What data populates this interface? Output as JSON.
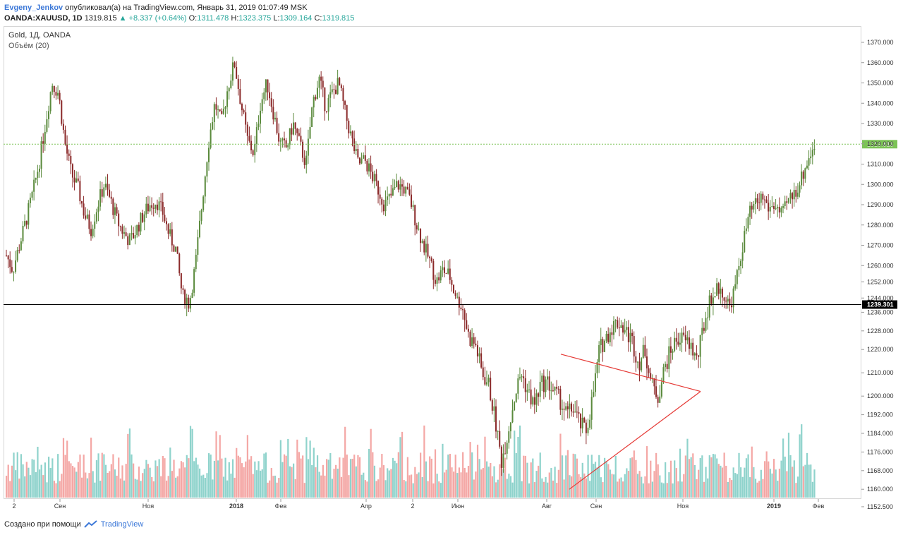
{
  "header": {
    "author": "Evgeny_Jenkov",
    "published": "опубликовал(а) на TradingView.com, Январь 31, 2019 01:07:49 MSK",
    "symbol": "OANDA:XAUUSD, 1D",
    "last": "1319.815",
    "change": "+8.337 (+0.64%)",
    "o_label": "O:",
    "o": "1311.478",
    "h_label": "H:",
    "h": "1323.375",
    "l_label": "L:",
    "l": "1309.164",
    "c_label": "C:",
    "c": "1319.815"
  },
  "legend": {
    "title": "Gold, 1Д, OANDA",
    "volume": "Объём (20)"
  },
  "footer": {
    "text": "Создано при помощи",
    "brand": "TradingView"
  },
  "colors": {
    "up": "#26a69a",
    "down": "#ef5350",
    "candle_up": "#5a8a3c",
    "candle_down": "#8b2a2a",
    "vol_up": "#8fd3cc",
    "vol_down": "#f4a7a5",
    "hline": "#000000",
    "last_line": "#7cc356",
    "triangle": "#e53935"
  },
  "chart_data": {
    "type": "candlestick",
    "y_ticks": [
      1370,
      1360,
      1350,
      1340,
      1330,
      1320,
      1310,
      1300,
      1290,
      1280,
      1270,
      1260,
      1252,
      1244,
      1236,
      1228,
      1220,
      1210,
      1200,
      1192,
      1184,
      1176,
      1168,
      1160,
      1152.5
    ],
    "y_tick_labels": [
      "1370.000",
      "1360.000",
      "1350.000",
      "1340.000",
      "1330.000",
      "1320.000",
      "1310.000",
      "1300.000",
      "1290.000",
      "1280.000",
      "1270.000",
      "1260.000",
      "1252.000",
      "1244.000",
      "1236.000",
      "1228.000",
      "1220.000",
      "1210.000",
      "1200.000",
      "1192.000",
      "1184.000",
      "1176.000",
      "1168.000",
      "1160.000",
      "1152.500"
    ],
    "x_labels": [
      "2",
      "Сен",
      "Ноя",
      "2018",
      "Фев",
      "Апр",
      "2",
      "Июн",
      "Авг",
      "Сен",
      "Ноя",
      "2019",
      "Фев"
    ],
    "bold_x_labels": [
      "2018",
      "2019"
    ],
    "horizontal_level": {
      "value": 1239.301,
      "label": "1239.301"
    },
    "last_price": {
      "value": 1319.815,
      "label": "1319.815"
    },
    "triangle": [
      [
        1218,
        "Авг"
      ],
      [
        1201,
        "Ноя"
      ],
      [
        1160,
        "Авг"
      ]
    ],
    "price_path": [
      1265,
      1258,
      1270,
      1282,
      1295,
      1310,
      1330,
      1350,
      1345,
      1320,
      1305,
      1298,
      1285,
      1278,
      1290,
      1300,
      1292,
      1282,
      1276,
      1272,
      1278,
      1285,
      1290,
      1292,
      1286,
      1275,
      1268,
      1245,
      1240,
      1260,
      1290,
      1320,
      1340,
      1330,
      1348,
      1360,
      1340,
      1322,
      1315,
      1340,
      1350,
      1335,
      1320,
      1318,
      1330,
      1320,
      1310,
      1340,
      1352,
      1338,
      1345,
      1350,
      1335,
      1322,
      1310,
      1312,
      1305,
      1298,
      1290,
      1294,
      1300,
      1298,
      1292,
      1280,
      1270,
      1262,
      1252,
      1258,
      1255,
      1244,
      1238,
      1225,
      1222,
      1210,
      1205,
      1190,
      1172,
      1185,
      1200,
      1210,
      1202,
      1196,
      1205,
      1206,
      1202,
      1198,
      1192,
      1195,
      1188,
      1185,
      1200,
      1220,
      1225,
      1230,
      1232,
      1228,
      1224,
      1214,
      1220,
      1205,
      1200,
      1212,
      1220,
      1225,
      1224,
      1222,
      1215,
      1230,
      1242,
      1248,
      1245,
      1238,
      1252,
      1270,
      1285,
      1290,
      1294,
      1288,
      1290,
      1284,
      1292,
      1296,
      1303,
      1312,
      1320
    ]
  }
}
